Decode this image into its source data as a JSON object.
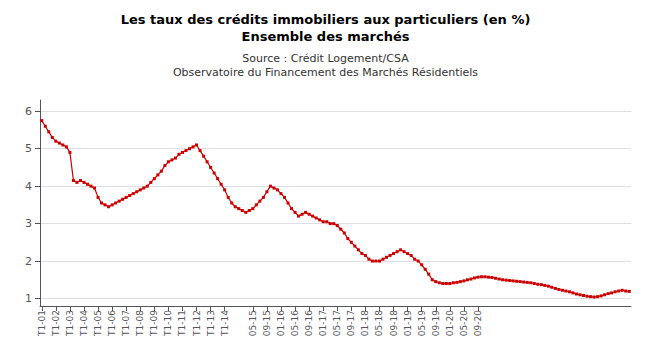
{
  "chart_data": {
    "type": "line",
    "title": "Les taux des crédits immobiliers aux particuliers (en %)",
    "subtitle": "Ensemble des marchés",
    "annotations": [
      "Source : Crédit Logement/CSA",
      "Observatoire du Financement des Marchés Résidentiels"
    ],
    "color": "#CC0000",
    "marker": "square",
    "grid": true,
    "ylim": [
      0.8,
      6.3
    ],
    "yticks": [
      1,
      2,
      3,
      4,
      5,
      6
    ],
    "categories": [
      "T1-01",
      null,
      null,
      null,
      "T1-02",
      null,
      null,
      null,
      "T1-03",
      null,
      null,
      null,
      "T1-04",
      null,
      null,
      null,
      "T1-05",
      null,
      null,
      null,
      "T1-06",
      null,
      null,
      null,
      "T1-07",
      null,
      null,
      null,
      "T1-08",
      null,
      null,
      null,
      "T1-09",
      null,
      null,
      null,
      "T1-10",
      null,
      null,
      null,
      "T1-11",
      null,
      null,
      null,
      "T1-12",
      null,
      null,
      null,
      "T1-13",
      null,
      null,
      null,
      "T1-14",
      null,
      null,
      null,
      null,
      null,
      null,
      null,
      "05-15",
      null,
      null,
      null,
      "09-15",
      null,
      null,
      null,
      "01-16",
      null,
      null,
      null,
      "05-16",
      null,
      null,
      null,
      "09-16",
      null,
      null,
      null,
      "01-17",
      null,
      null,
      null,
      "05-17",
      null,
      null,
      null,
      "09-17",
      null,
      null,
      null,
      "01-18",
      null,
      null,
      null,
      "05-18",
      null,
      null,
      null,
      "09-18",
      null,
      null,
      null,
      "01-19",
      null,
      null,
      null,
      "05-19",
      null,
      null,
      null,
      "09-19",
      null,
      null,
      null,
      "01-20",
      null,
      null,
      null,
      "05-20",
      null,
      null,
      null,
      "09-20",
      null,
      null,
      null,
      null,
      null,
      null,
      null,
      null,
      null,
      null,
      null,
      null,
      null,
      null,
      null,
      null,
      null,
      null,
      null,
      null,
      null,
      null,
      null,
      null,
      null,
      null,
      null,
      null,
      null,
      null,
      null,
      null,
      null,
      null,
      null,
      null,
      null,
      null,
      null,
      null,
      null,
      null,
      null
    ],
    "values": [
      5.75,
      5.6,
      5.45,
      5.3,
      5.2,
      5.15,
      5.1,
      5.05,
      4.9,
      4.15,
      4.1,
      4.15,
      4.1,
      4.05,
      4.0,
      3.95,
      3.7,
      3.55,
      3.5,
      3.45,
      3.5,
      3.55,
      3.6,
      3.65,
      3.7,
      3.75,
      3.8,
      3.85,
      3.9,
      3.95,
      4.0,
      4.1,
      4.2,
      4.3,
      4.4,
      4.55,
      4.65,
      4.7,
      4.75,
      4.85,
      4.9,
      4.95,
      5.0,
      5.05,
      5.1,
      4.95,
      4.8,
      4.65,
      4.5,
      4.35,
      4.2,
      4.05,
      3.9,
      3.7,
      3.55,
      3.45,
      3.4,
      3.35,
      3.3,
      3.35,
      3.4,
      3.5,
      3.6,
      3.7,
      3.85,
      4.0,
      3.95,
      3.9,
      3.8,
      3.7,
      3.55,
      3.4,
      3.3,
      3.2,
      3.25,
      3.3,
      3.25,
      3.2,
      3.15,
      3.1,
      3.05,
      3.05,
      3.0,
      3.0,
      2.95,
      2.85,
      2.75,
      2.6,
      2.5,
      2.4,
      2.3,
      2.2,
      2.15,
      2.05,
      2.0,
      2.0,
      2.0,
      2.05,
      2.1,
      2.15,
      2.2,
      2.25,
      2.3,
      2.25,
      2.2,
      2.15,
      2.05,
      2.0,
      1.9,
      1.78,
      1.65,
      1.5,
      1.45,
      1.42,
      1.4,
      1.4,
      1.4,
      1.42,
      1.43,
      1.45,
      1.47,
      1.5,
      1.52,
      1.55,
      1.57,
      1.58,
      1.58,
      1.57,
      1.56,
      1.54,
      1.52,
      1.5,
      1.49,
      1.48,
      1.47,
      1.46,
      1.45,
      1.44,
      1.43,
      1.42,
      1.4,
      1.38,
      1.37,
      1.35,
      1.33,
      1.3,
      1.27,
      1.24,
      1.22,
      1.2,
      1.18,
      1.15,
      1.12,
      1.1,
      1.08,
      1.06,
      1.05,
      1.04,
      1.05,
      1.07,
      1.1,
      1.13,
      1.15,
      1.18,
      1.2,
      1.22,
      1.2,
      1.19
    ]
  }
}
